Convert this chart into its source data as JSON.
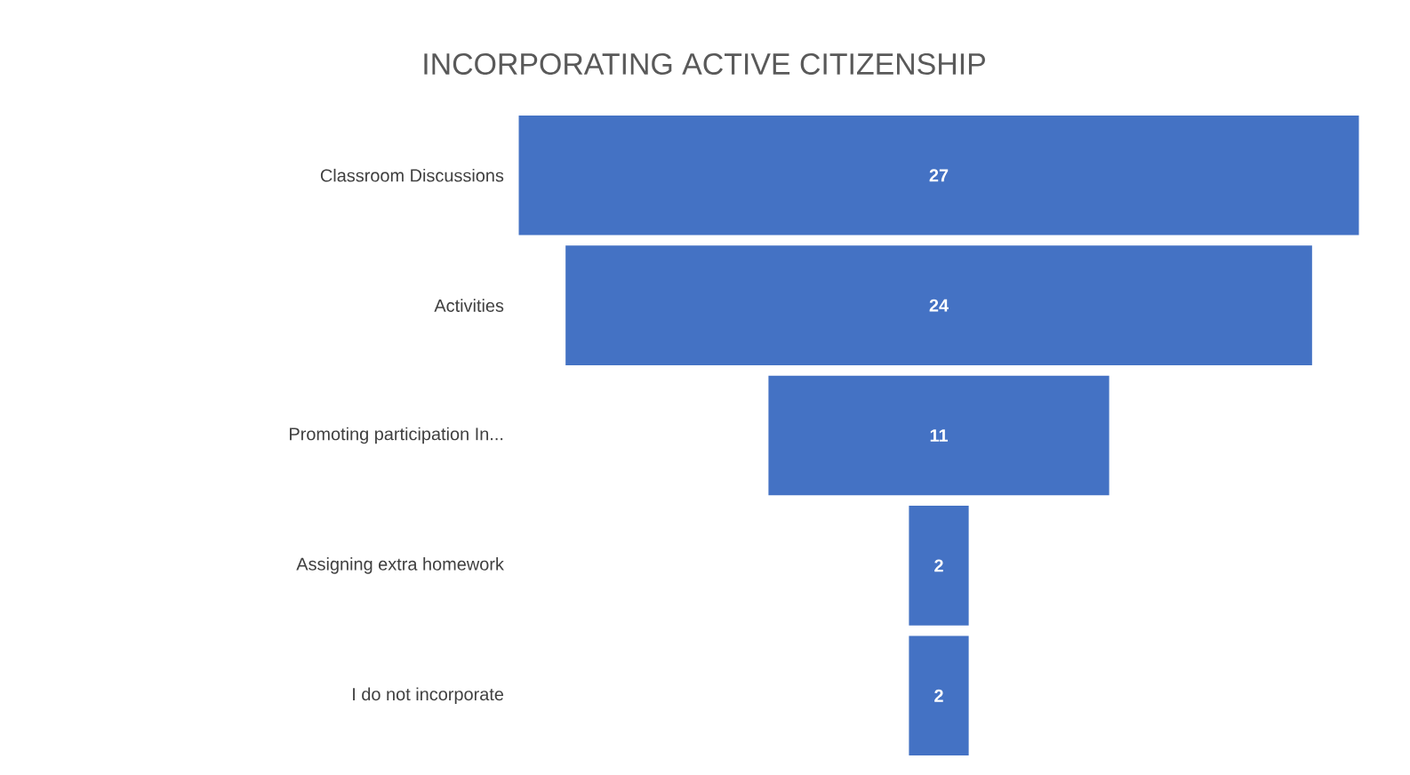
{
  "chart_data": {
    "type": "other",
    "title": "INCORPORATING ACTIVE CITIZENSHIP",
    "categories": [
      "Classroom Discussions",
      "Activities",
      "Promoting participation In...",
      "Assigning extra homework",
      "I do not incorporate"
    ],
    "values": [
      27,
      24,
      11,
      2,
      2
    ],
    "color": "#4472c4",
    "data_labels": true
  }
}
